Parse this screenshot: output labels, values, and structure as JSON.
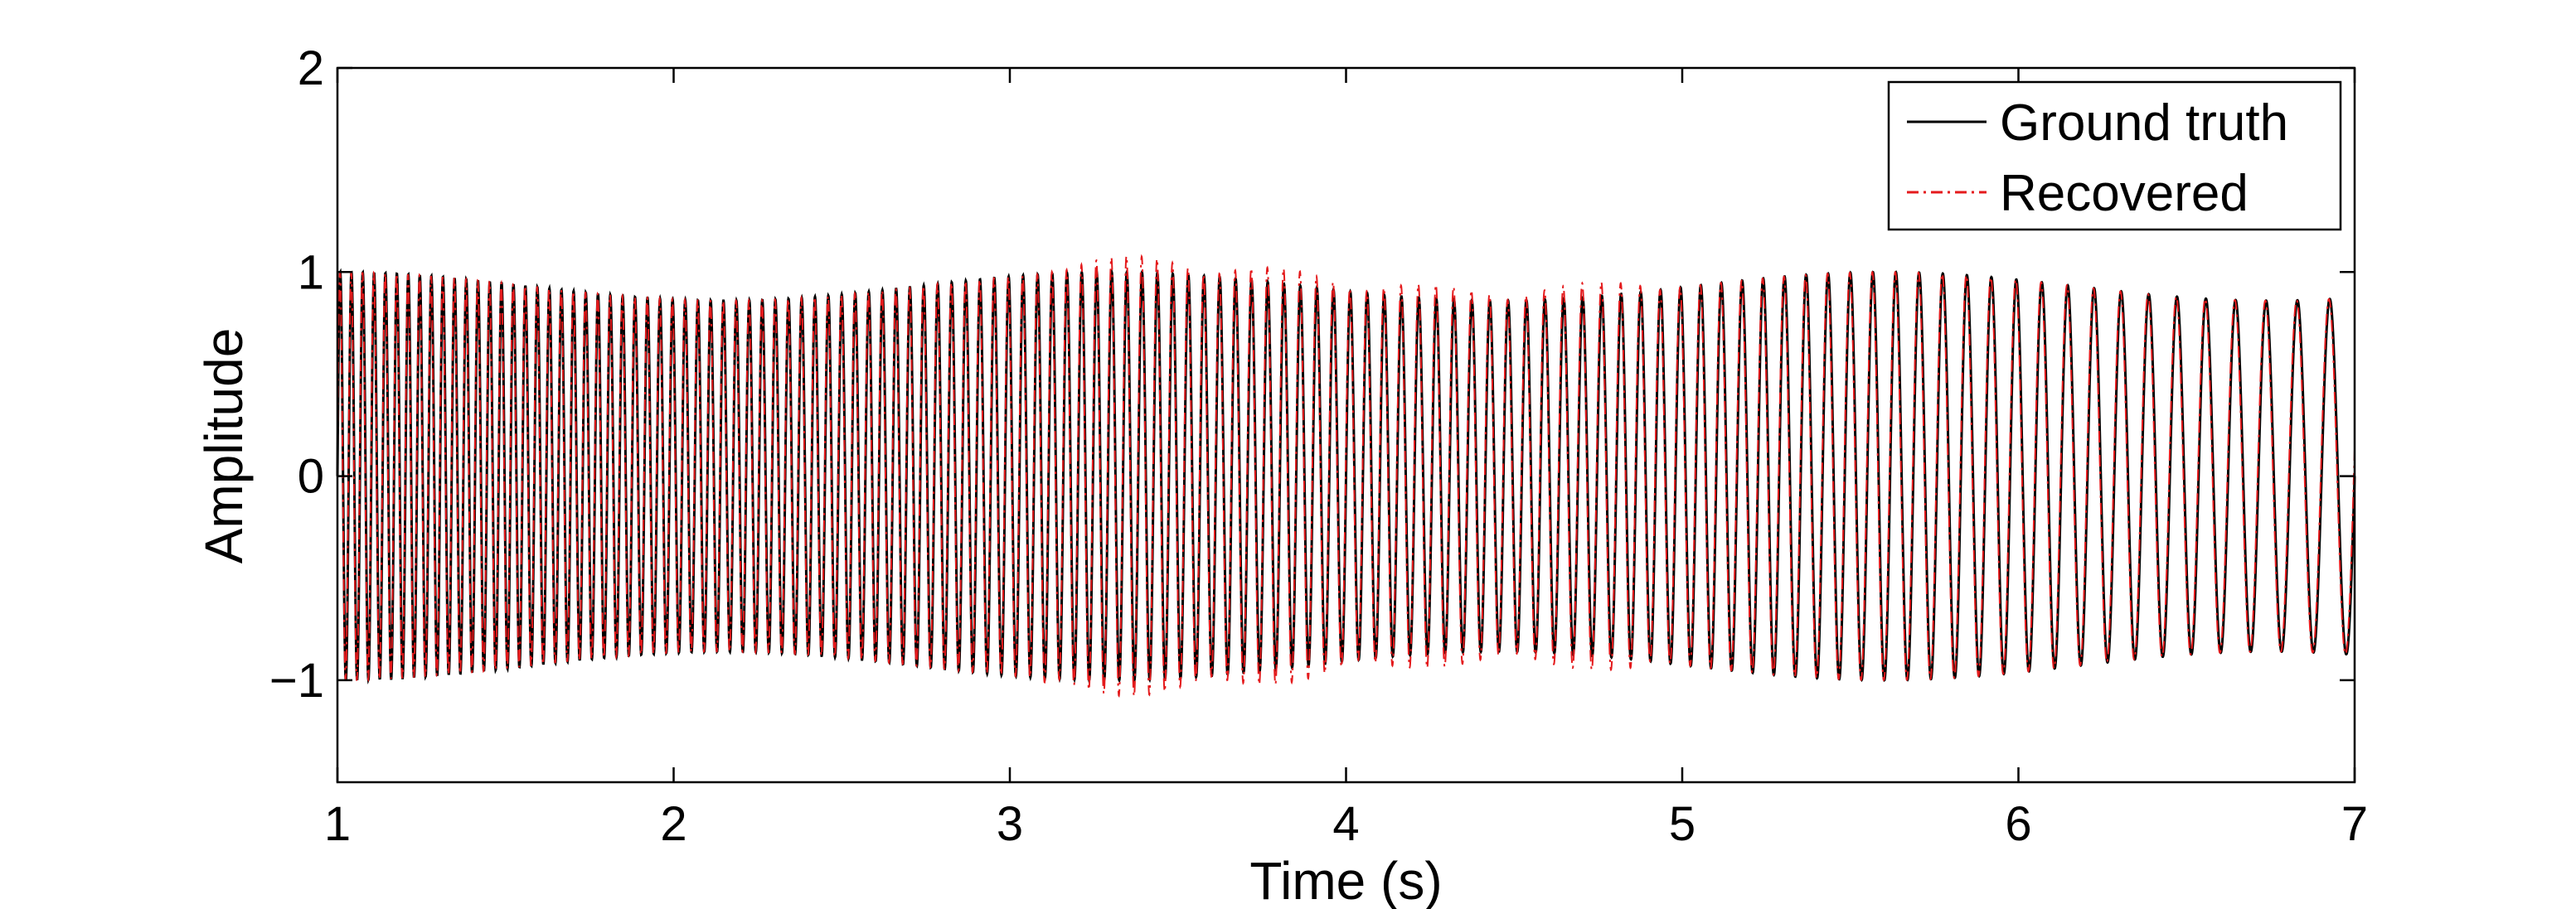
{
  "chart_data": {
    "type": "line",
    "title": "",
    "xlabel": "Time (s)",
    "ylabel": "Amplitude",
    "xlim": [
      1,
      7
    ],
    "ylim": [
      -1.5,
      2
    ],
    "xticks": [
      1,
      2,
      3,
      4,
      5,
      6,
      7
    ],
    "xtick_labels": [
      "1",
      "2",
      "3",
      "4",
      "5",
      "6",
      "7"
    ],
    "yticks": [
      -1,
      0,
      1,
      2
    ],
    "ytick_labels": [
      "−1",
      "0",
      "1",
      "2"
    ],
    "grid": false,
    "legend_position": "top-right",
    "series": [
      {
        "name": "Ground truth",
        "color": "#000000",
        "style": "solid",
        "amplitude_approx": 1.0,
        "frequency_start_hz_approx": 30,
        "frequency_end_hz_approx": 10
      },
      {
        "name": "Recovered",
        "color": "#e41a1c",
        "style": "dash-dot",
        "amplitude_approx": 1.0,
        "frequency_start_hz_approx": 30,
        "frequency_end_hz_approx": 10
      }
    ]
  }
}
